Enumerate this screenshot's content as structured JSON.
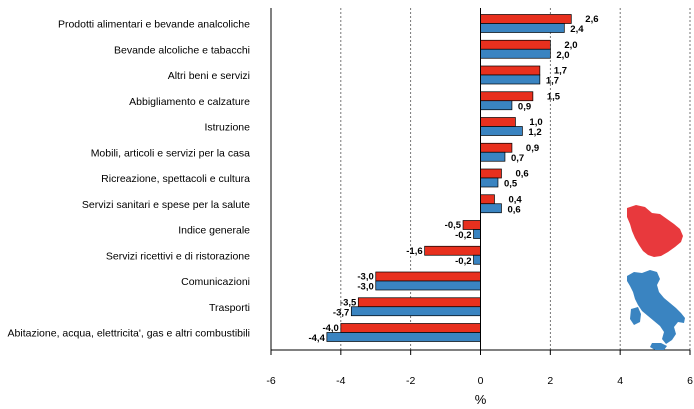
{
  "chart_data": {
    "type": "bar",
    "orientation": "horizontal",
    "xlabel": "%",
    "xlim": [
      -6,
      6
    ],
    "xticks": [
      "-6",
      "-4",
      "-2",
      "0",
      "2",
      "4",
      "6"
    ],
    "grid": "vertical-dashed",
    "categories": [
      "Prodotti alimentari e bevande analcoliche",
      "Bevande alcoliche e tabacchi",
      "Altri beni e servizi",
      "Abbigliamento e calzature",
      "Istruzione",
      "Mobili, articoli e servizi per la casa",
      "Ricreazione, spettacoli e cultura",
      "Servizi sanitari e spese per la salute",
      "Indice generale",
      "Servizi ricettivi e di ristorazione",
      "Comunicazioni",
      "Trasporti",
      "Abitazione, acqua, elettricita', gas e altri combustibili"
    ],
    "series": [
      {
        "color": "#e8301e",
        "region_icon": "tuscany-map-icon",
        "values": [
          2.6,
          2.0,
          1.7,
          1.5,
          1.0,
          0.9,
          0.6,
          0.4,
          -0.5,
          -1.6,
          -3.0,
          -3.5,
          -4.0
        ],
        "labels": [
          "2,6",
          "2,0",
          "1,7",
          "1,5",
          "1,0",
          "0,9",
          "0,6",
          "0,4",
          "-0,5",
          "-1,6",
          "-3,0",
          "-3,5",
          "-4,0"
        ]
      },
      {
        "color": "#3a84c1",
        "region_icon": "italy-map-icon",
        "values": [
          2.4,
          2.0,
          1.7,
          0.9,
          1.2,
          0.7,
          0.5,
          0.6,
          -0.2,
          -0.2,
          -3.0,
          -3.7,
          -4.4
        ],
        "labels": [
          "2,4",
          "2,0",
          "1,7",
          "0,9",
          "1,2",
          "0,7",
          "0,5",
          "0,6",
          "-0,2",
          "-0,2",
          "-3,0",
          "-3,7",
          "-4,4"
        ]
      }
    ]
  }
}
